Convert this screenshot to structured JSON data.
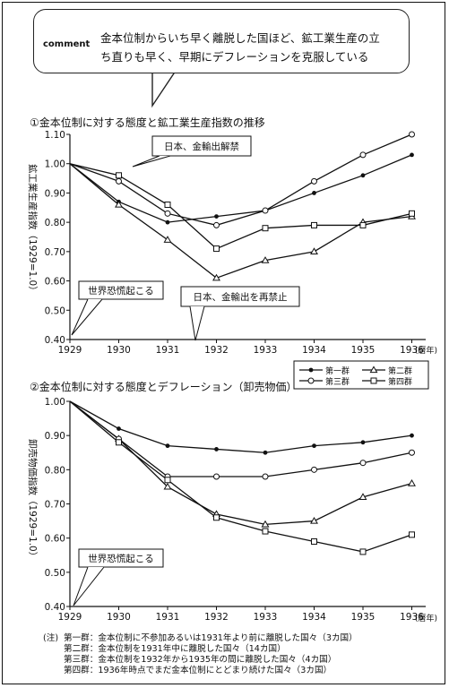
{
  "comment": {
    "label": "comment",
    "text_line1": "金本位制からいち早く離脱した国ほど、鉱工業生産の立",
    "text_line2": "ち直りも早く、早期にデフレーションを克服している"
  },
  "legend": [
    {
      "name": "第一群",
      "marker": "dot"
    },
    {
      "name": "第二群",
      "marker": "triangle"
    },
    {
      "name": "第三群",
      "marker": "circle"
    },
    {
      "name": "第四群",
      "marker": "square"
    }
  ],
  "notes": {
    "head": "(注)",
    "lines": [
      "第一群：金本位制に不参加あるいは1931年より前に離脱した国々（3カ国）",
      "第二群：金本位制を1931年中に離脱した国々（14カ国）",
      "第三群：金本位制を1932年から1935年の間に離脱した国々（4カ国）",
      "第四群：1936年時点でまだ金本位制にとどまり続けた国々（3カ国）"
    ]
  },
  "chart_data": [
    {
      "type": "line",
      "title": "①金本位制に対する態度と鉱工業生産指数の推移",
      "ylabel": "鉱工業生産指数（1929=1.0）",
      "x": [
        "1929",
        "1930",
        "1931",
        "1932",
        "1933",
        "1934",
        "1935",
        "1936"
      ],
      "x_unit": "(暦年)",
      "ylim": [
        0.4,
        1.1
      ],
      "yticks": [
        "1.10",
        "1.00",
        "0.90",
        "0.80",
        "0.70",
        "0.60",
        "0.50",
        "0.40"
      ],
      "grid": false,
      "series": [
        {
          "name": "第一群",
          "values": [
            1.0,
            0.87,
            0.8,
            0.82,
            0.84,
            0.9,
            0.96,
            1.03
          ]
        },
        {
          "name": "第二群",
          "values": [
            1.0,
            0.86,
            0.74,
            0.61,
            0.67,
            0.7,
            0.8,
            0.82
          ]
        },
        {
          "name": "第三群",
          "values": [
            1.0,
            0.94,
            0.83,
            0.79,
            0.84,
            0.94,
            1.03,
            1.1
          ]
        },
        {
          "name": "第四群",
          "values": [
            1.0,
            0.96,
            0.86,
            0.71,
            0.78,
            0.79,
            0.79,
            0.83
          ]
        }
      ],
      "annotations": [
        {
          "text": "日本、金輸出解禁"
        },
        {
          "text": "世界恐慌起こる"
        },
        {
          "text": "日本、金輸出を再禁止"
        }
      ]
    },
    {
      "type": "line",
      "title": "②金本位制に対する態度とデフレーション（卸売物価）",
      "ylabel": "卸売物価指数（1929=1.0）",
      "x": [
        "1929",
        "1930",
        "1931",
        "1932",
        "1933",
        "1934",
        "1935",
        "1936"
      ],
      "x_unit": "(暦年)",
      "ylim": [
        0.4,
        1.0
      ],
      "yticks": [
        "1.00",
        "0.90",
        "0.80",
        "0.70",
        "0.60",
        "0.50",
        "0.40"
      ],
      "grid": false,
      "series": [
        {
          "name": "第一群",
          "values": [
            1.0,
            0.92,
            0.87,
            0.86,
            0.85,
            0.87,
            0.88,
            0.9
          ]
        },
        {
          "name": "第二群",
          "values": [
            1.0,
            0.89,
            0.75,
            0.67,
            0.64,
            0.65,
            0.72,
            0.76
          ]
        },
        {
          "name": "第三群",
          "values": [
            1.0,
            0.89,
            0.78,
            0.78,
            0.78,
            0.8,
            0.82,
            0.85
          ]
        },
        {
          "name": "第四群",
          "values": [
            1.0,
            0.88,
            0.77,
            0.66,
            0.62,
            0.59,
            0.56,
            0.61
          ]
        }
      ],
      "annotations": [
        {
          "text": "世界恐慌起こる"
        }
      ]
    }
  ]
}
